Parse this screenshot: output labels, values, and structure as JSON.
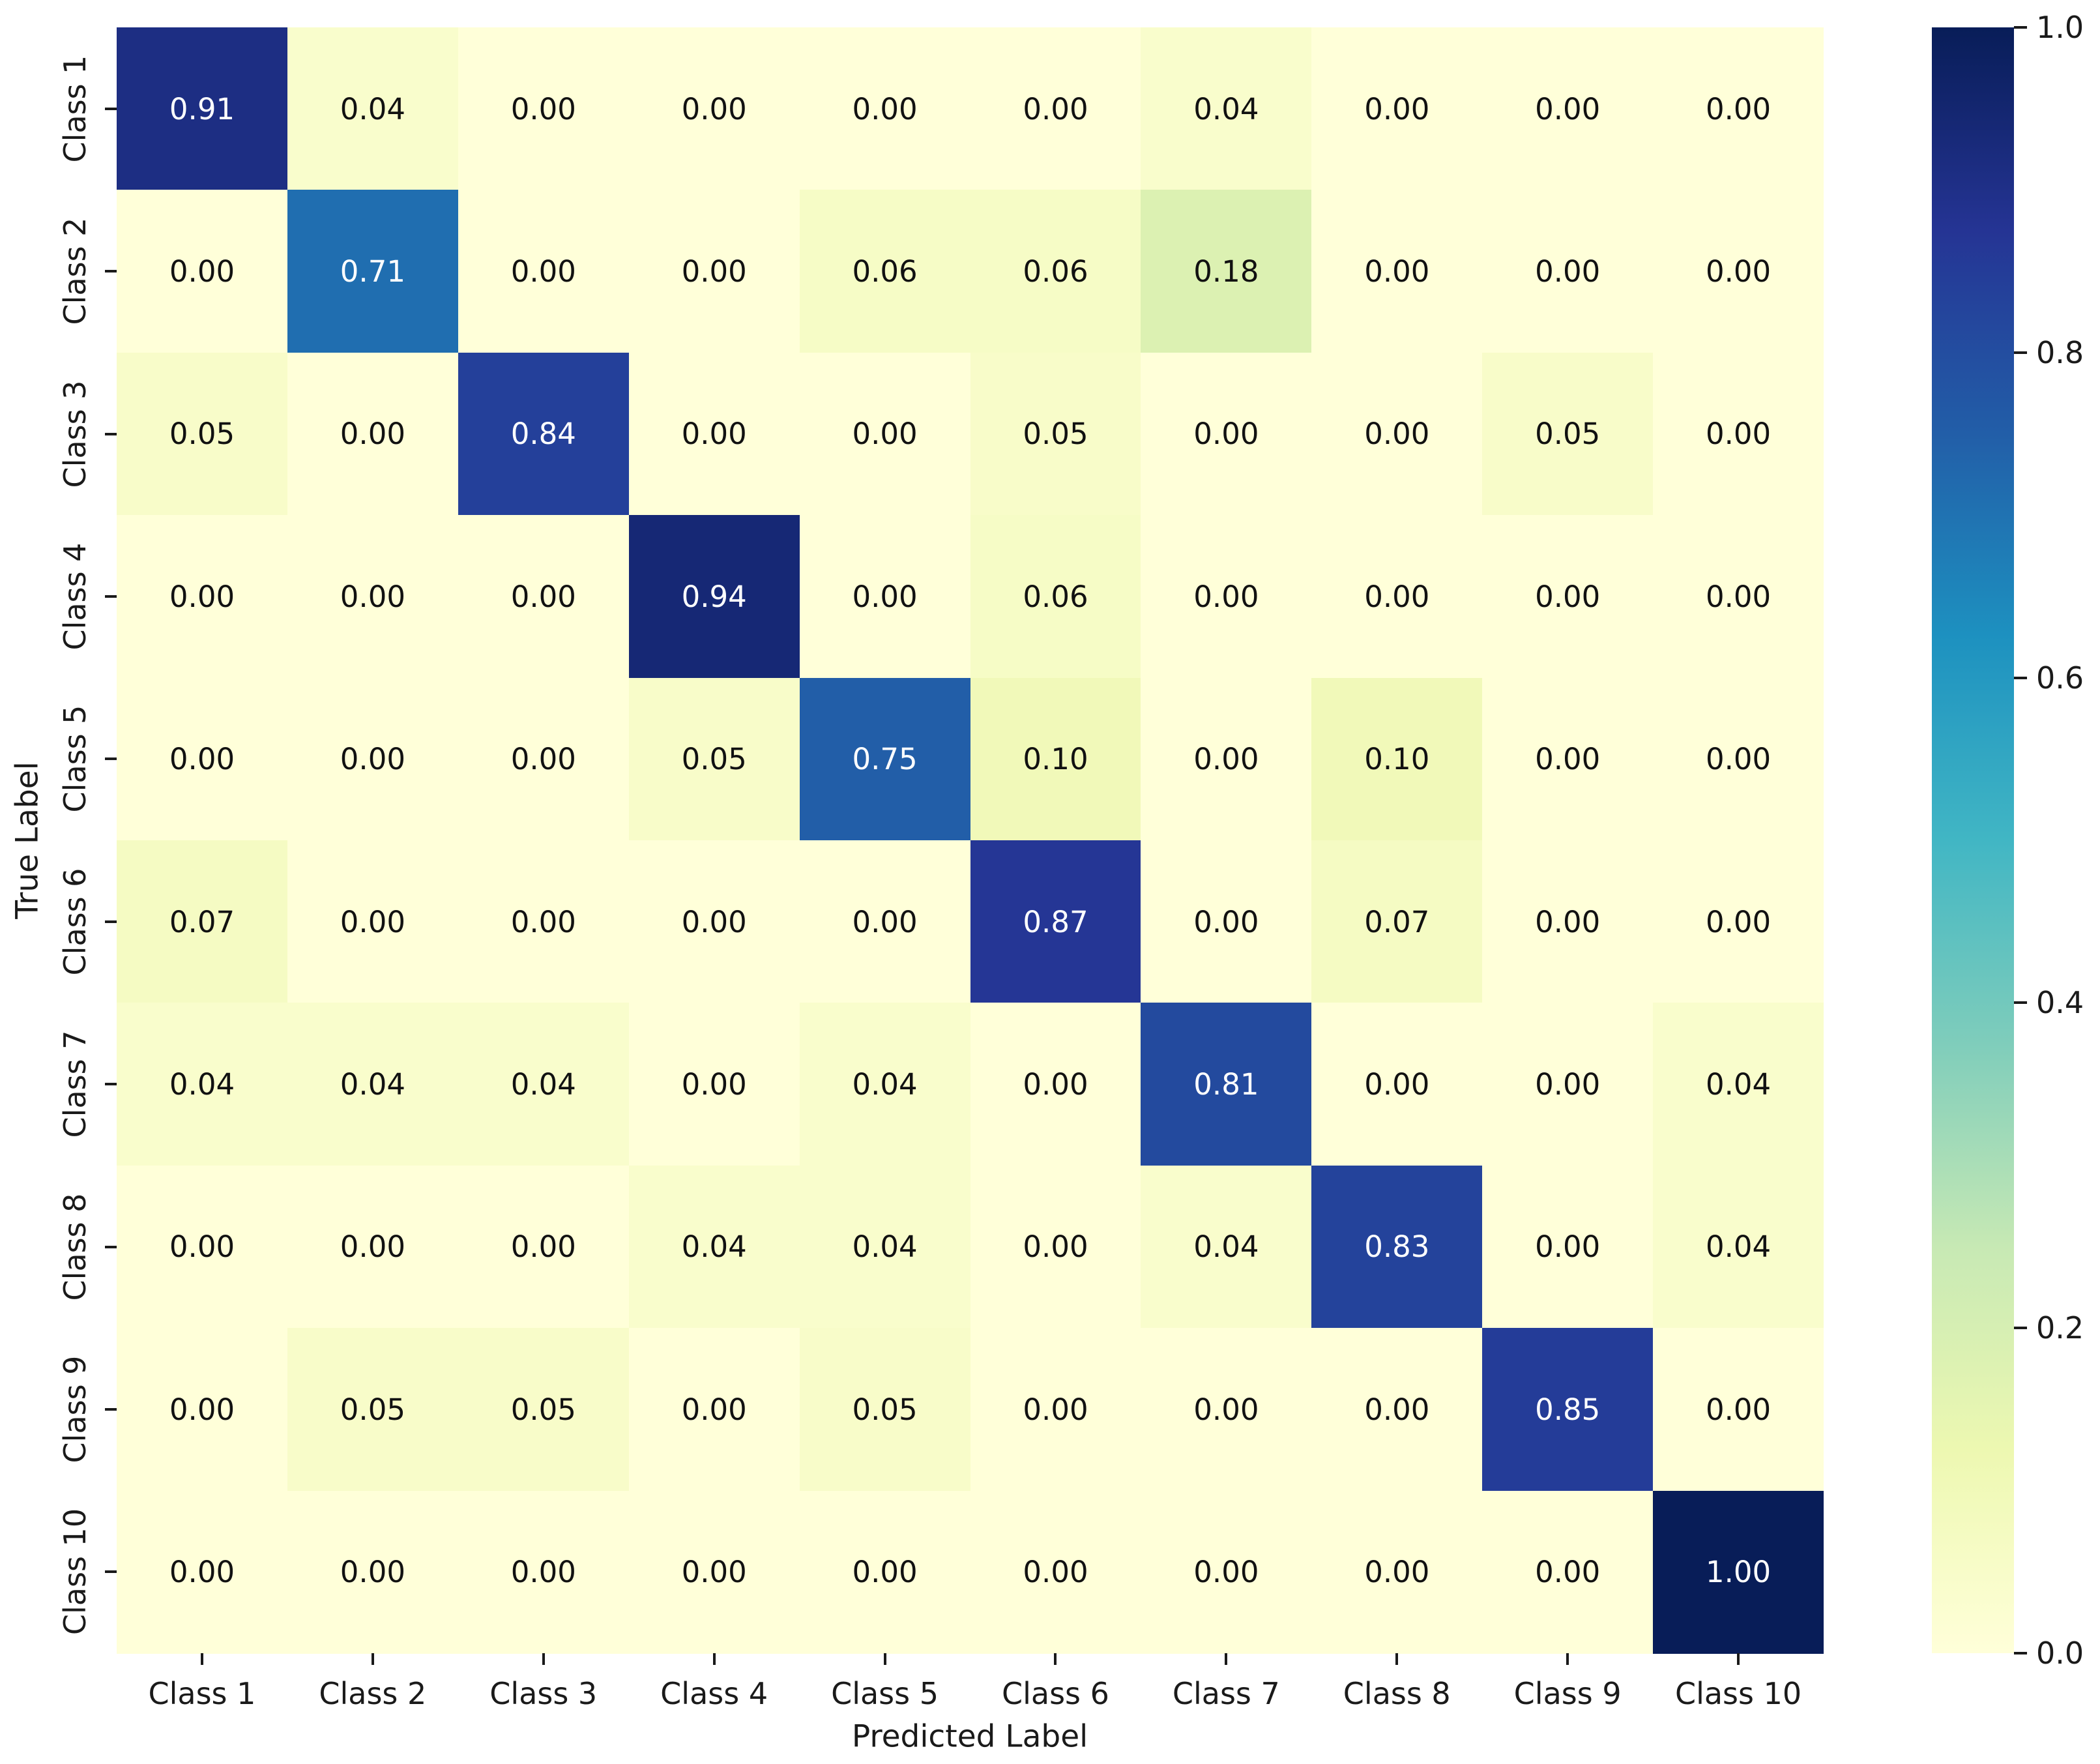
{
  "chart_data": {
    "type": "heatmap",
    "xlabel": "Predicted Label",
    "ylabel": "True Label",
    "x_categories": [
      "Class 1",
      "Class 2",
      "Class 3",
      "Class 4",
      "Class 5",
      "Class 6",
      "Class 7",
      "Class 8",
      "Class 9",
      "Class 10"
    ],
    "y_categories": [
      "Class 1",
      "Class 2",
      "Class 3",
      "Class 4",
      "Class 5",
      "Class 6",
      "Class 7",
      "Class 8",
      "Class 9",
      "Class 10"
    ],
    "matrix": [
      [
        0.91,
        0.04,
        0.0,
        0.0,
        0.0,
        0.0,
        0.04,
        0.0,
        0.0,
        0.0
      ],
      [
        0.0,
        0.71,
        0.0,
        0.0,
        0.06,
        0.06,
        0.18,
        0.0,
        0.0,
        0.0
      ],
      [
        0.05,
        0.0,
        0.84,
        0.0,
        0.0,
        0.05,
        0.0,
        0.0,
        0.05,
        0.0
      ],
      [
        0.0,
        0.0,
        0.0,
        0.94,
        0.0,
        0.06,
        0.0,
        0.0,
        0.0,
        0.0
      ],
      [
        0.0,
        0.0,
        0.0,
        0.05,
        0.75,
        0.1,
        0.0,
        0.1,
        0.0,
        0.0
      ],
      [
        0.07,
        0.0,
        0.0,
        0.0,
        0.0,
        0.87,
        0.0,
        0.07,
        0.0,
        0.0
      ],
      [
        0.04,
        0.04,
        0.04,
        0.0,
        0.04,
        0.0,
        0.81,
        0.0,
        0.0,
        0.04
      ],
      [
        0.0,
        0.0,
        0.0,
        0.04,
        0.04,
        0.0,
        0.04,
        0.83,
        0.0,
        0.04
      ],
      [
        0.0,
        0.05,
        0.05,
        0.0,
        0.05,
        0.0,
        0.0,
        0.0,
        0.85,
        0.0
      ],
      [
        0.0,
        0.0,
        0.0,
        0.0,
        0.0,
        0.0,
        0.0,
        0.0,
        0.0,
        1.0
      ]
    ],
    "annotation_format": "2-decimals",
    "grid": false,
    "vmin": 0.0,
    "vmax": 1.0,
    "colormap": {
      "name": "YlGnBu",
      "stops": [
        {
          "t": 0.0,
          "hex": "#ffffd9"
        },
        {
          "t": 0.125,
          "hex": "#edf8b1"
        },
        {
          "t": 0.25,
          "hex": "#c7e9b4"
        },
        {
          "t": 0.375,
          "hex": "#7fcdbb"
        },
        {
          "t": 0.5,
          "hex": "#41b6c4"
        },
        {
          "t": 0.625,
          "hex": "#1d91c0"
        },
        {
          "t": 0.75,
          "hex": "#225ea8"
        },
        {
          "t": 0.875,
          "hex": "#253494"
        },
        {
          "t": 1.0,
          "hex": "#081d58"
        }
      ]
    },
    "colorbar": {
      "position": "right",
      "tick_values": [
        1.0,
        0.8,
        0.6,
        0.4,
        0.2,
        0.0
      ],
      "tick_labels": [
        "1.0",
        "0.8",
        "0.6",
        "0.4",
        "0.2",
        "0.0"
      ]
    },
    "annotation_colors": {
      "on_dark": "#ffffff",
      "on_light": "#111111"
    }
  }
}
